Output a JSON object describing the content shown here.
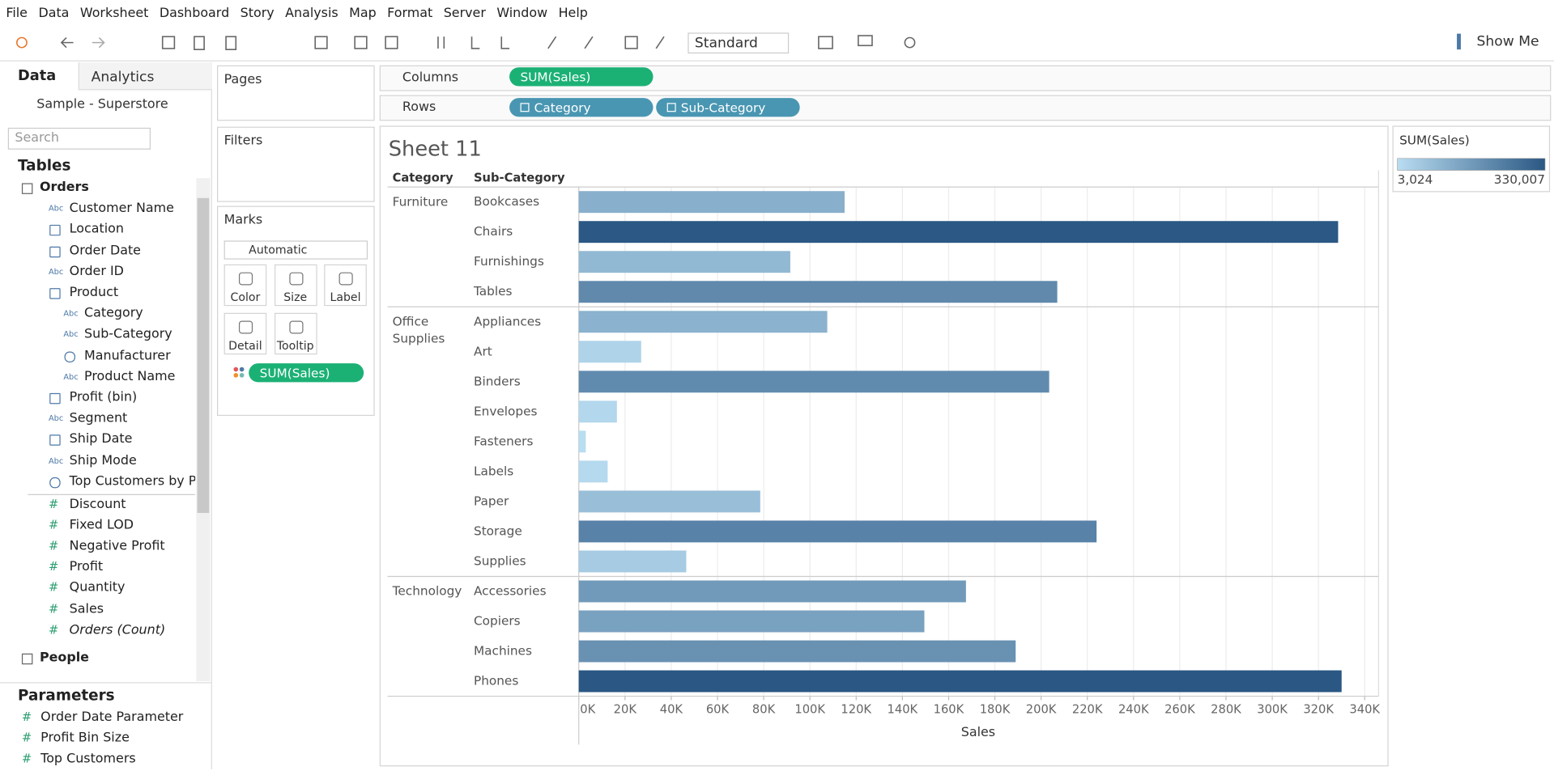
{
  "menu": [
    "File",
    "Data",
    "Worksheet",
    "Dashboard",
    "Story",
    "Analysis",
    "Map",
    "Format",
    "Server",
    "Window",
    "Help"
  ],
  "toolbar": {
    "fit": "Standard",
    "show_me": "Show Me"
  },
  "data_pane": {
    "tabs": [
      "Data",
      "Analytics"
    ],
    "source": "Sample - Superstore",
    "search_placeholder": "Search",
    "tables_heading": "Tables",
    "icon_labels": {
      "text": "Abc",
      "number": "#"
    },
    "tables": [
      {
        "name": "Orders",
        "dimensions": [
          {
            "name": "Customer Name",
            "kind": "text"
          },
          {
            "name": "Location",
            "kind": "hierarchy"
          },
          {
            "name": "Order Date",
            "kind": "date"
          },
          {
            "name": "Order ID",
            "kind": "text"
          },
          {
            "name": "Product",
            "kind": "hierarchy",
            "children": [
              {
                "name": "Category",
                "kind": "text"
              },
              {
                "name": "Sub-Category",
                "kind": "text"
              },
              {
                "name": "Manufacturer",
                "kind": "group"
              },
              {
                "name": "Product Name",
                "kind": "text"
              }
            ]
          },
          {
            "name": "Profit (bin)",
            "kind": "bin"
          },
          {
            "name": "Segment",
            "kind": "text"
          },
          {
            "name": "Ship Date",
            "kind": "date"
          },
          {
            "name": "Ship Mode",
            "kind": "text"
          },
          {
            "name": "Top Customers by Pr...",
            "kind": "set"
          }
        ],
        "measures": [
          {
            "name": "Discount",
            "kind": "number"
          },
          {
            "name": "Fixed LOD",
            "kind": "number"
          },
          {
            "name": "Negative Profit",
            "kind": "number"
          },
          {
            "name": "Profit",
            "kind": "number"
          },
          {
            "name": "Quantity",
            "kind": "number"
          },
          {
            "name": "Sales",
            "kind": "number"
          },
          {
            "name": "Orders (Count)",
            "kind": "number",
            "italic": true
          }
        ]
      },
      {
        "name": "People",
        "dimensions": [],
        "measures": []
      }
    ],
    "parameters_heading": "Parameters",
    "parameters": [
      "Order Date Parameter",
      "Profit Bin Size",
      "Top Customers"
    ]
  },
  "shelves": {
    "pages": "Pages",
    "filters": "Filters",
    "marks": "Marks",
    "mark_type": "Automatic",
    "mark_buttons": [
      "Color",
      "Size",
      "Label",
      "Detail",
      "Tooltip"
    ],
    "mark_pill": "SUM(Sales)",
    "columns": "Columns",
    "columns_pills": [
      "SUM(Sales)"
    ],
    "rows": "Rows",
    "rows_pills": [
      "Category",
      "Sub-Category"
    ]
  },
  "chart_data": {
    "type": "bar",
    "orientation": "horizontal",
    "title": "Sheet 11",
    "row_headers": [
      "Category",
      "Sub-Category"
    ],
    "groups": [
      {
        "name": "Furniture",
        "categories": [
          "Bookcases",
          "Chairs",
          "Furnishings",
          "Tables"
        ],
        "values": [
          115000,
          328500,
          91500,
          207000
        ]
      },
      {
        "name": "Office Supplies",
        "categories": [
          "Appliances",
          "Art",
          "Binders",
          "Envelopes",
          "Fasteners",
          "Labels",
          "Paper",
          "Storage",
          "Supplies"
        ],
        "values": [
          107500,
          27000,
          203500,
          16500,
          3024,
          12500,
          78500,
          224000,
          46500
        ]
      },
      {
        "name": "Technology",
        "categories": [
          "Accessories",
          "Copiers",
          "Machines",
          "Phones"
        ],
        "values": [
          167500,
          149500,
          189000,
          330007
        ]
      }
    ],
    "xlabel": "Sales",
    "xlim": [
      0,
      346000
    ],
    "xticks": [
      {
        "value": 0,
        "label": "0K"
      },
      {
        "value": 20000,
        "label": "20K"
      },
      {
        "value": 40000,
        "label": "40K"
      },
      {
        "value": 60000,
        "label": "60K"
      },
      {
        "value": 80000,
        "label": "80K"
      },
      {
        "value": 100000,
        "label": "100K"
      },
      {
        "value": 120000,
        "label": "120K"
      },
      {
        "value": 140000,
        "label": "140K"
      },
      {
        "value": 160000,
        "label": "160K"
      },
      {
        "value": 180000,
        "label": "180K"
      },
      {
        "value": 200000,
        "label": "200K"
      },
      {
        "value": 220000,
        "label": "220K"
      },
      {
        "value": 240000,
        "label": "240K"
      },
      {
        "value": 260000,
        "label": "260K"
      },
      {
        "value": 280000,
        "label": "280K"
      },
      {
        "value": 300000,
        "label": "300K"
      },
      {
        "value": 320000,
        "label": "320K"
      },
      {
        "value": 340000,
        "label": "340K"
      }
    ],
    "grid": true,
    "legend": {
      "title": "SUM(Sales)",
      "range": [
        {
          "value": 3024,
          "label": "3,024"
        },
        {
          "value": 330007,
          "label": "330,007"
        }
      ],
      "colors": [
        "#b9ddf1",
        "#2a5783"
      ]
    }
  }
}
